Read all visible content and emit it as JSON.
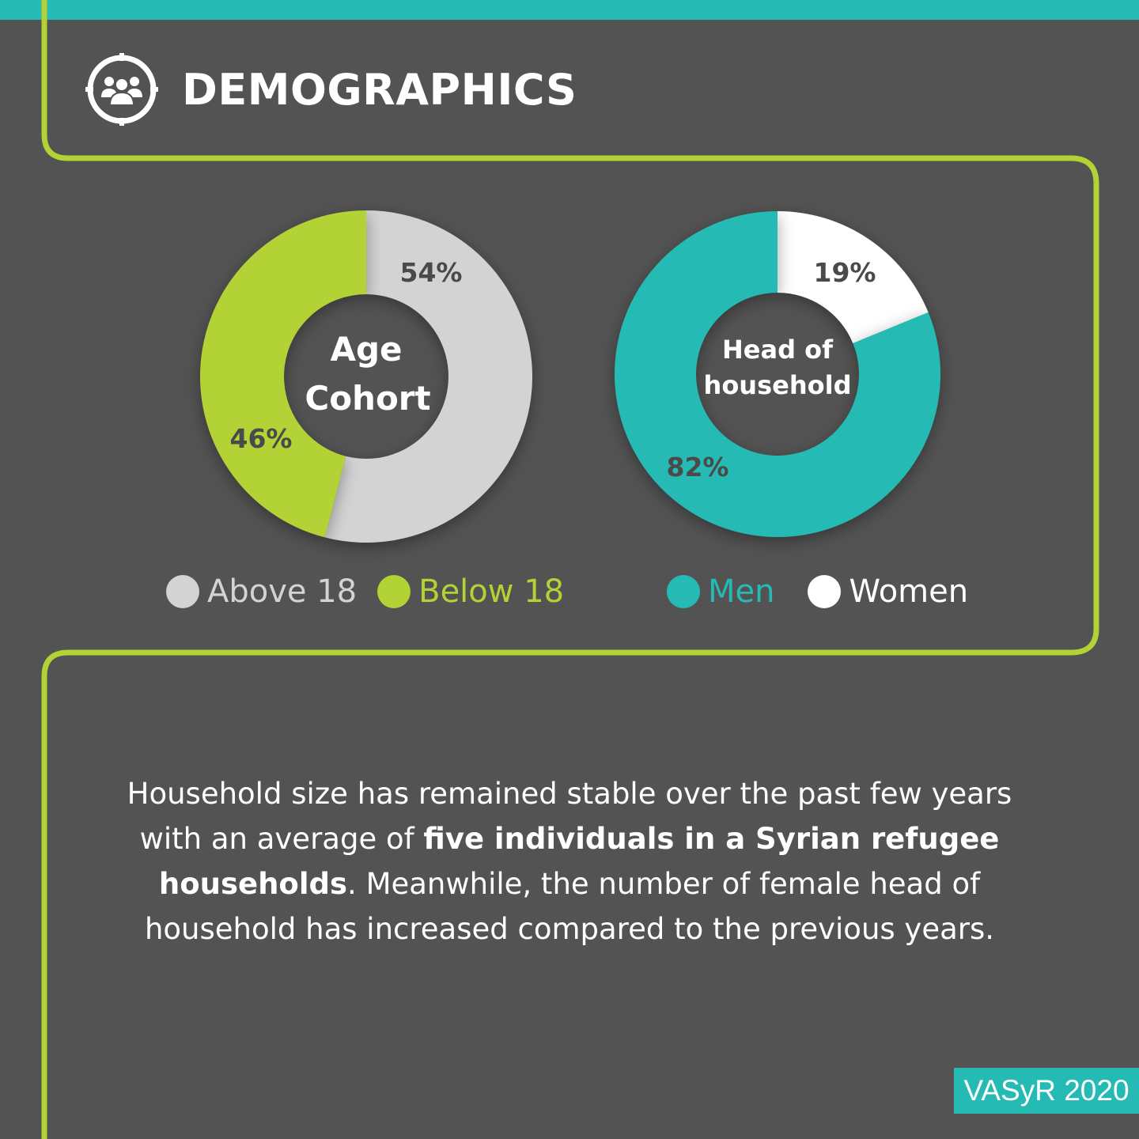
{
  "header": {
    "title": "DEMOGRAPHICS",
    "icon": "people-group-icon"
  },
  "colors": {
    "background": "#535353",
    "teal": "#26bab4",
    "lime": "#b2d235",
    "light_gray": "#d3d3d3",
    "white": "#ffffff",
    "label_dark": "#4a4a4a"
  },
  "chart_data": [
    {
      "type": "pie",
      "title": "Age Cohort",
      "slices": [
        {
          "label": "Above 18",
          "value": 54,
          "display": "54%",
          "color": "#d3d3d3"
        },
        {
          "label": "Below 18",
          "value": 46,
          "display": "46%",
          "color": "#b2d235"
        }
      ],
      "legend": [
        "Above 18",
        "Below 18"
      ],
      "legend_placement": "bottom"
    },
    {
      "type": "pie",
      "title_lines": [
        "Head of",
        "household"
      ],
      "slices": [
        {
          "label": "Women",
          "value": 19,
          "display": "19%",
          "color": "#ffffff"
        },
        {
          "label": "Men",
          "value": 82,
          "display": "82%",
          "color": "#26bab4"
        }
      ],
      "legend": [
        "Men",
        "Women"
      ],
      "legend_placement": "bottom"
    }
  ],
  "body": {
    "part1": "Household size has remained stable over the past few years with an average of ",
    "bold": "five individuals in a Syrian refugee households",
    "part2": ". Meanwhile, the number of female head of household has increased compared to the previous years."
  },
  "source": "VASyR 2020"
}
